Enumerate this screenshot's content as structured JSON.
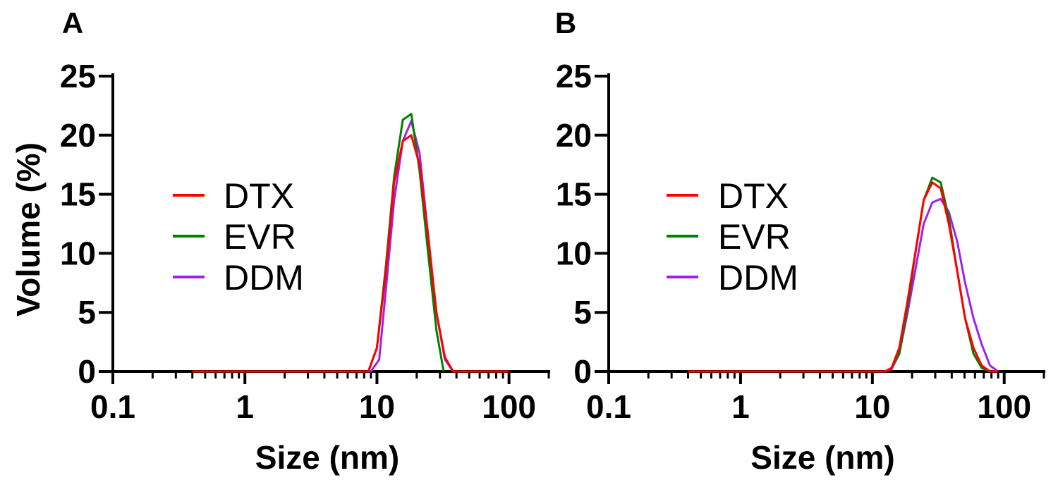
{
  "chart_data": [
    {
      "panel_label": "A",
      "type": "line",
      "xscale": "log",
      "xlim": [
        0.1,
        200
      ],
      "ylim": [
        0,
        25
      ],
      "xticks": [
        {
          "value": 0.1,
          "label": "0.1"
        },
        {
          "value": 1,
          "label": "1"
        },
        {
          "value": 10,
          "label": "10"
        },
        {
          "value": 100,
          "label": "100"
        }
      ],
      "yticks": [
        {
          "value": 0,
          "label": "0"
        },
        {
          "value": 5,
          "label": "5"
        },
        {
          "value": 10,
          "label": "10"
        },
        {
          "value": 15,
          "label": "15"
        },
        {
          "value": 20,
          "label": "20"
        },
        {
          "value": 25,
          "label": "25"
        }
      ],
      "xlabel": "Size (nm)",
      "ylabel": "Volume (%)",
      "legend_position": "center-left",
      "series": [
        {
          "name": "DTX",
          "color": "#ff0000",
          "x": [
            0.4,
            8.6,
            10.0,
            11.7,
            13.5,
            15.7,
            18.2,
            21.0,
            24.4,
            28.2,
            32.7,
            37.8,
            100
          ],
          "y": [
            0,
            0,
            2.0,
            8.5,
            16.0,
            19.5,
            20.0,
            17.5,
            11.5,
            5.0,
            1.2,
            0,
            0
          ]
        },
        {
          "name": "EVR",
          "color": "#008000",
          "x": [
            0.4,
            8.6,
            10.0,
            11.7,
            13.5,
            15.7,
            18.2,
            21.0,
            24.4,
            28.2,
            32.0
          ],
          "y": [
            0,
            0,
            2.0,
            9.0,
            16.5,
            21.3,
            21.8,
            17.0,
            10.0,
            3.5,
            0
          ]
        },
        {
          "name": "DDM",
          "color": "#a020f0",
          "x": [
            0.4,
            9.0,
            10.4,
            11.7,
            13.5,
            15.7,
            18.2,
            21.0,
            24.4,
            28.2,
            32.7,
            37.8
          ],
          "y": [
            0,
            0,
            1.0,
            7.0,
            14.5,
            19.5,
            21.2,
            18.5,
            11.5,
            5.0,
            1.0,
            0
          ]
        }
      ]
    },
    {
      "panel_label": "B",
      "type": "line",
      "xscale": "log",
      "xlim": [
        0.1,
        200
      ],
      "ylim": [
        0,
        25
      ],
      "xticks": [
        {
          "value": 0.1,
          "label": "0.1"
        },
        {
          "value": 1,
          "label": "1"
        },
        {
          "value": 10,
          "label": "10"
        },
        {
          "value": 100,
          "label": "100"
        }
      ],
      "yticks": [
        {
          "value": 0,
          "label": "0"
        },
        {
          "value": 5,
          "label": "5"
        },
        {
          "value": 10,
          "label": "10"
        },
        {
          "value": 15,
          "label": "15"
        },
        {
          "value": 20,
          "label": "20"
        },
        {
          "value": 25,
          "label": "25"
        }
      ],
      "xlabel": "Size (nm)",
      "ylabel": "",
      "legend_position": "center-left",
      "series": [
        {
          "name": "DTX",
          "color": "#ff0000",
          "x": [
            0.4,
            12.5,
            14.0,
            16.0,
            18.5,
            21.5,
            24.5,
            28.5,
            33.0,
            38.0,
            44.0,
            50.5,
            58.5,
            67.5,
            78.0,
            90.0
          ],
          "y": [
            0,
            0,
            0.3,
            2.0,
            6.0,
            10.5,
            14.5,
            16.0,
            15.5,
            12.5,
            8.5,
            4.5,
            2.0,
            0.5,
            0,
            0
          ]
        },
        {
          "name": "EVR",
          "color": "#008000",
          "x": [
            0.4,
            12.5,
            14.0,
            16.0,
            18.5,
            21.5,
            24.5,
            28.5,
            33.0,
            38.0,
            44.0,
            50.5,
            58.5,
            67.5,
            78.0
          ],
          "y": [
            0,
            0,
            0.3,
            1.5,
            5.5,
            10.5,
            14.5,
            16.4,
            16.0,
            13.0,
            8.5,
            4.5,
            1.5,
            0.3,
            0
          ]
        },
        {
          "name": "DDM",
          "color": "#a020f0",
          "x": [
            0.4,
            12.5,
            14.0,
            16.0,
            18.5,
            21.5,
            24.5,
            28.5,
            33.0,
            38.0,
            44.0,
            50.5,
            58.5,
            67.5,
            78.0,
            90.0
          ],
          "y": [
            0,
            0,
            0.2,
            1.5,
            5.0,
            9.0,
            12.5,
            14.3,
            14.6,
            13.5,
            11.0,
            7.5,
            4.5,
            2.3,
            0.5,
            0
          ]
        }
      ]
    }
  ]
}
